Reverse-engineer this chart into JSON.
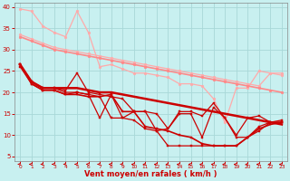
{
  "background_color": "#c8f0f0",
  "grid_color": "#a8d8d8",
  "xlabel": "Vent moyen/en rafales ( km/h )",
  "xlabel_color": "#cc0000",
  "tick_color": "#cc0000",
  "arrow_color": "#cc0000",
  "ylim": [
    4,
    41
  ],
  "xlim": [
    -0.5,
    23.5
  ],
  "yticks": [
    5,
    10,
    15,
    20,
    25,
    30,
    35,
    40
  ],
  "xticks": [
    0,
    1,
    2,
    3,
    4,
    5,
    6,
    7,
    8,
    9,
    10,
    11,
    12,
    13,
    14,
    15,
    16,
    17,
    18,
    19,
    20,
    21,
    22,
    23
  ],
  "series": [
    {
      "x": [
        0,
        1,
        2,
        3,
        4,
        5,
        6,
        7,
        8,
        9,
        10,
        11,
        12,
        13,
        14,
        15,
        16,
        17,
        18,
        19,
        20,
        21,
        22,
        23
      ],
      "y": [
        39.5,
        39.0,
        35.5,
        34.0,
        33.0,
        39.0,
        34.0,
        26.0,
        26.5,
        25.5,
        24.5,
        24.5,
        24.0,
        23.5,
        22.0,
        22.0,
        21.5,
        18.5,
        13.0,
        21.0,
        21.0,
        25.0,
        24.5,
        24.5
      ],
      "color": "#ffaaaa",
      "marker": "o",
      "markersize": 2.0,
      "linewidth": 0.9
    },
    {
      "x": [
        0,
        1,
        2,
        3,
        4,
        5,
        6,
        7,
        8,
        9,
        10,
        11,
        12,
        13,
        14,
        15,
        16,
        17,
        18,
        19,
        20,
        21,
        22,
        23
      ],
      "y": [
        33.5,
        32.5,
        31.5,
        30.5,
        30.0,
        29.5,
        29.0,
        28.5,
        28.0,
        27.5,
        27.0,
        26.5,
        26.0,
        25.5,
        25.0,
        24.5,
        24.0,
        23.5,
        23.0,
        22.5,
        22.0,
        21.5,
        24.5,
        24.0
      ],
      "color": "#ffaaaa",
      "marker": "o",
      "markersize": 2.0,
      "linewidth": 0.9
    },
    {
      "x": [
        0,
        1,
        2,
        3,
        4,
        5,
        6,
        7,
        8,
        9,
        10,
        11,
        12,
        13,
        14,
        15,
        16,
        17,
        18,
        19,
        20,
        21,
        22,
        23
      ],
      "y": [
        33.0,
        32.0,
        31.0,
        30.0,
        29.5,
        29.0,
        28.5,
        28.0,
        27.5,
        27.0,
        26.5,
        26.0,
        25.5,
        25.0,
        24.5,
        24.0,
        23.5,
        23.0,
        22.5,
        22.0,
        21.5,
        21.0,
        20.5,
        20.0
      ],
      "color": "#ff8888",
      "marker": "o",
      "markersize": 2.0,
      "linewidth": 1.2
    },
    {
      "x": [
        0,
        1,
        2,
        3,
        4,
        5,
        6,
        7,
        8,
        9,
        10,
        11,
        12,
        13,
        14,
        15,
        16,
        17,
        18,
        19,
        20,
        21,
        22,
        23
      ],
      "y": [
        26.5,
        22.5,
        21.0,
        21.0,
        20.5,
        24.5,
        20.0,
        19.5,
        19.0,
        18.5,
        15.5,
        15.5,
        11.0,
        7.5,
        7.5,
        7.5,
        7.5,
        7.5,
        7.5,
        7.5,
        9.5,
        11.0,
        13.0,
        13.0
      ],
      "color": "#cc0000",
      "marker": "s",
      "markersize": 2.0,
      "linewidth": 0.9
    },
    {
      "x": [
        0,
        1,
        2,
        3,
        4,
        5,
        6,
        7,
        8,
        9,
        10,
        11,
        12,
        13,
        14,
        15,
        16,
        17,
        18,
        19,
        20,
        21,
        22,
        23
      ],
      "y": [
        26.5,
        22.5,
        21.0,
        21.0,
        20.0,
        20.0,
        19.5,
        14.0,
        19.5,
        14.0,
        15.5,
        15.5,
        15.0,
        11.5,
        15.5,
        15.5,
        14.5,
        17.5,
        14.0,
        10.0,
        14.0,
        14.5,
        13.0,
        13.0
      ],
      "color": "#cc0000",
      "marker": "s",
      "markersize": 2.0,
      "linewidth": 0.9
    },
    {
      "x": [
        0,
        1,
        2,
        3,
        4,
        5,
        6,
        7,
        8,
        9,
        10,
        11,
        12,
        13,
        14,
        15,
        16,
        17,
        18,
        19,
        20,
        21,
        22,
        23
      ],
      "y": [
        26.0,
        22.0,
        20.5,
        20.5,
        19.5,
        20.0,
        19.5,
        19.0,
        14.0,
        14.0,
        13.5,
        11.5,
        11.0,
        11.5,
        15.0,
        15.0,
        9.5,
        16.5,
        14.0,
        9.5,
        9.5,
        12.0,
        13.0,
        13.5
      ],
      "color": "#cc0000",
      "marker": "s",
      "markersize": 2.0,
      "linewidth": 0.9
    },
    {
      "x": [
        0,
        1,
        2,
        3,
        4,
        5,
        6,
        7,
        8,
        9,
        10,
        11,
        12,
        13,
        14,
        15,
        16,
        17,
        18,
        19,
        20,
        21,
        22,
        23
      ],
      "y": [
        26.5,
        22.0,
        20.5,
        20.5,
        19.5,
        19.5,
        19.0,
        19.0,
        19.5,
        15.5,
        15.5,
        12.0,
        11.5,
        11.0,
        10.0,
        9.5,
        8.0,
        7.5,
        7.5,
        7.5,
        9.5,
        11.5,
        12.5,
        13.0
      ],
      "color": "#cc0000",
      "marker": "s",
      "markersize": 2.0,
      "linewidth": 1.2
    },
    {
      "x": [
        0,
        1,
        2,
        3,
        4,
        5,
        6,
        7,
        8,
        9,
        10,
        11,
        12,
        13,
        14,
        15,
        16,
        17,
        18,
        19,
        20,
        21,
        22,
        23
      ],
      "y": [
        26.5,
        22.5,
        21.0,
        21.0,
        21.0,
        21.0,
        20.5,
        20.0,
        20.0,
        19.5,
        19.0,
        18.5,
        18.0,
        17.5,
        17.0,
        16.5,
        16.0,
        15.5,
        15.0,
        14.5,
        14.0,
        13.5,
        13.0,
        12.5
      ],
      "color": "#cc0000",
      "marker": null,
      "linewidth": 1.8
    }
  ]
}
